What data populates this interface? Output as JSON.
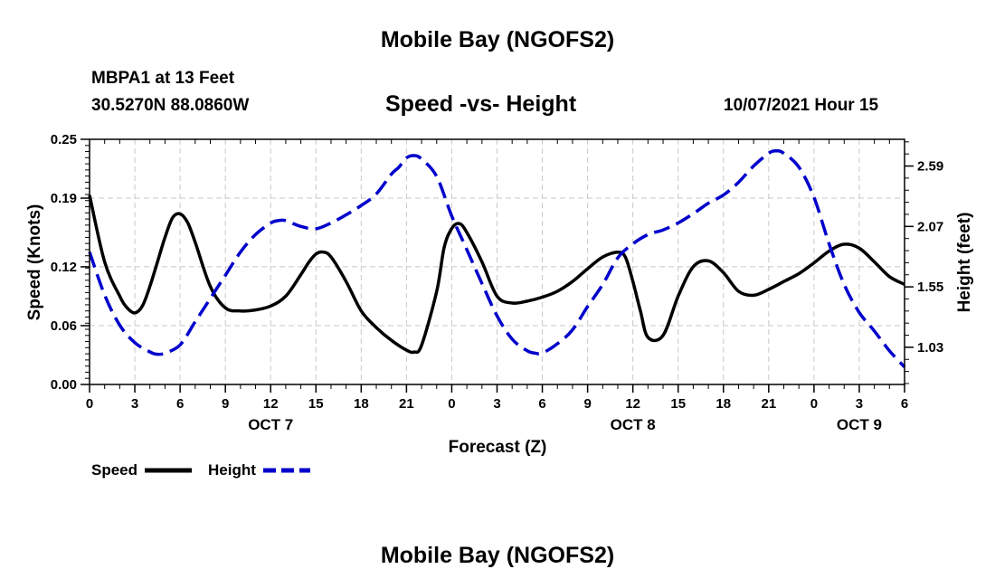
{
  "header": {
    "title": "Mobile Bay (NGOFS2)",
    "station": "MBPA1 at 13 Feet",
    "coords": "30.5270N  88.0860W",
    "subtitle": "Speed -vs- Height",
    "datetime": "10/07/2021 Hour 15"
  },
  "footer": {
    "title": "Mobile Bay (NGOFS2)"
  },
  "chart_data": {
    "type": "line",
    "xlabel": "Forecast (Z)",
    "ylabel": "Speed (Knots)",
    "y2label": "Height (feet)",
    "x_hour_range": [
      0,
      54
    ],
    "x_tick_labels": [
      "0",
      "3",
      "6",
      "9",
      "12",
      "15",
      "18",
      "21",
      "0",
      "3",
      "6",
      "9",
      "12",
      "15",
      "18",
      "21",
      "0",
      "3",
      "6"
    ],
    "date_labels": [
      {
        "label": "OCT 7",
        "hour": 12
      },
      {
        "label": "OCT 8",
        "hour": 36
      },
      {
        "label": "OCT 9",
        "hour": 51
      }
    ],
    "ylim": [
      0,
      0.25
    ],
    "y_ticks": [
      0.0,
      0.06,
      0.12,
      0.19,
      0.25
    ],
    "y_tick_labels": [
      "0.00",
      "0.06",
      "0.12",
      "0.19",
      "0.25"
    ],
    "y2lim": [
      0.71,
      2.82
    ],
    "y2_ticks": [
      1.03,
      1.55,
      2.07,
      2.59
    ],
    "y2_tick_labels": [
      "1.03",
      "1.55",
      "2.07",
      "2.59"
    ],
    "grid": true,
    "series": [
      {
        "name": "Speed",
        "color": "#000000",
        "style": "solid",
        "axis": "left",
        "x": [
          0,
          1,
          2,
          2.5,
          3,
          3.5,
          4,
          4.5,
          5,
          5.5,
          6,
          6.5,
          7,
          8,
          9,
          10,
          11,
          12,
          13,
          14,
          14.5,
          15,
          15.5,
          16,
          17,
          18,
          19,
          20,
          21,
          21.5,
          22,
          23,
          23.5,
          24,
          24.5,
          25,
          26,
          27,
          28,
          29,
          30,
          31,
          32,
          33,
          34,
          35,
          35.5,
          36,
          36.5,
          37,
          38,
          39,
          40,
          41,
          42,
          43,
          44,
          45,
          46,
          47,
          48,
          49,
          50,
          51,
          52,
          53,
          54
        ],
        "y": [
          0.193,
          0.125,
          0.09,
          0.078,
          0.073,
          0.08,
          0.1,
          0.125,
          0.15,
          0.17,
          0.174,
          0.165,
          0.145,
          0.1,
          0.078,
          0.075,
          0.076,
          0.08,
          0.09,
          0.112,
          0.124,
          0.133,
          0.135,
          0.13,
          0.105,
          0.075,
          0.058,
          0.045,
          0.035,
          0.033,
          0.04,
          0.095,
          0.14,
          0.159,
          0.164,
          0.155,
          0.125,
          0.09,
          0.083,
          0.085,
          0.089,
          0.095,
          0.105,
          0.118,
          0.13,
          0.135,
          0.13,
          0.105,
          0.075,
          0.048,
          0.05,
          0.09,
          0.12,
          0.126,
          0.114,
          0.095,
          0.091,
          0.097,
          0.105,
          0.113,
          0.124,
          0.136,
          0.143,
          0.139,
          0.125,
          0.11,
          0.102
        ]
      },
      {
        "name": "Height",
        "color": "#0000cc",
        "style": "dashed",
        "axis": "right",
        "x": [
          0,
          1,
          2,
          3,
          4,
          4.5,
          5,
          6,
          7,
          8,
          9,
          10,
          11,
          12,
          12.5,
          13,
          14,
          15,
          16,
          17,
          18,
          19,
          20,
          20.5,
          21,
          21.5,
          22,
          23,
          24,
          25,
          26,
          27,
          28,
          29,
          29.5,
          30,
          31,
          32,
          33,
          34,
          35,
          36,
          37,
          38,
          39,
          40,
          41,
          42,
          43,
          44,
          45,
          45.5,
          46,
          47,
          48,
          49,
          50,
          51,
          52,
          53,
          54
        ],
        "y": [
          1.85,
          1.48,
          1.22,
          1.07,
          0.99,
          0.97,
          0.98,
          1.05,
          1.25,
          1.45,
          1.65,
          1.85,
          2.0,
          2.1,
          2.12,
          2.12,
          2.07,
          2.05,
          2.1,
          2.17,
          2.25,
          2.35,
          2.52,
          2.58,
          2.66,
          2.68,
          2.65,
          2.5,
          2.16,
          1.87,
          1.58,
          1.3,
          1.1,
          1.0,
          0.98,
          0.98,
          1.06,
          1.18,
          1.38,
          1.57,
          1.8,
          1.92,
          2.0,
          2.04,
          2.1,
          2.18,
          2.27,
          2.34,
          2.45,
          2.59,
          2.7,
          2.72,
          2.7,
          2.58,
          2.32,
          1.92,
          1.57,
          1.33,
          1.17,
          1.0,
          0.86
        ]
      }
    ],
    "legend": {
      "placement": "bottom-left",
      "entries": [
        "Speed",
        "Height"
      ]
    }
  }
}
